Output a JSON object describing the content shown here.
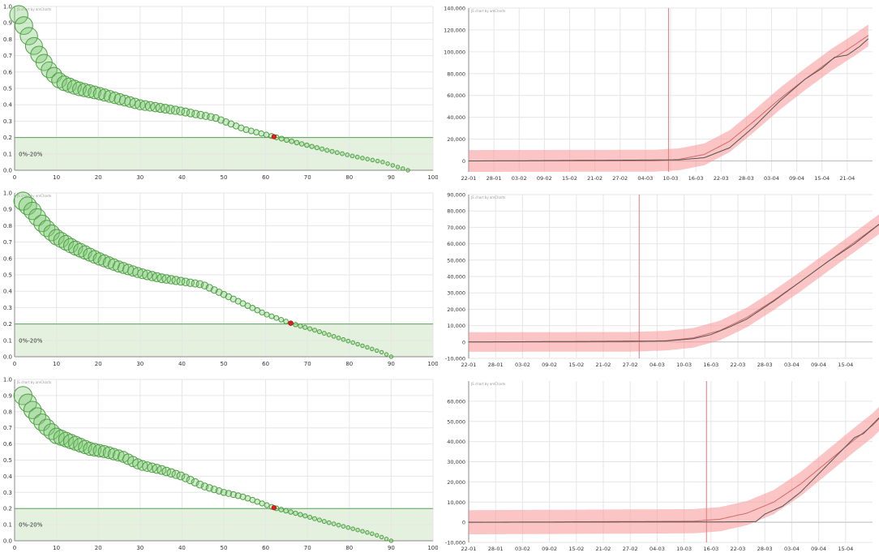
{
  "chart_data": [
    {
      "type": "scatter",
      "credit": "JS chart by amCharts",
      "band_label": "0%-20%",
      "xlim": [
        0,
        100
      ],
      "ylim": [
        0,
        1.0
      ],
      "xticks": [
        0,
        10,
        20,
        30,
        40,
        50,
        60,
        70,
        80,
        90,
        100
      ],
      "yticks": [
        0.0,
        0.1,
        0.2,
        0.3,
        0.4,
        0.5,
        0.6,
        0.7,
        0.8,
        0.9,
        1.0
      ],
      "band": [
        0,
        0.2
      ],
      "knots": [
        [
          1,
          0.95
        ],
        [
          3,
          0.84
        ],
        [
          5,
          0.74
        ],
        [
          8,
          0.62
        ],
        [
          11,
          0.54
        ],
        [
          15,
          0.5
        ],
        [
          20,
          0.47
        ],
        [
          30,
          0.4
        ],
        [
          40,
          0.36
        ],
        [
          48,
          0.32
        ],
        [
          55,
          0.25
        ],
        [
          62,
          0.205
        ],
        [
          68,
          0.165
        ],
        [
          75,
          0.12
        ],
        [
          82,
          0.08
        ],
        [
          88,
          0.05
        ],
        [
          91,
          0.025
        ],
        [
          94,
          0.0
        ]
      ],
      "highlight": [
        62,
        0.205
      ],
      "points_count": 78
    },
    {
      "type": "line",
      "credit": "JS chart by amCharts",
      "x_labels": [
        "22-01",
        "28-01",
        "03-02",
        "09-02",
        "15-02",
        "21-02",
        "27-02",
        "04-03",
        "10-03",
        "16-03",
        "22-03",
        "28-03",
        "03-04",
        "09-04",
        "15-04",
        "21-04"
      ],
      "ylim": [
        -10000,
        140000
      ],
      "yticks": [
        0,
        20000,
        40000,
        60000,
        80000,
        100000,
        120000,
        140000
      ],
      "ytick_labels": [
        "0",
        "20,000",
        "40,000",
        "60,000",
        "80,000",
        "100,000",
        "120,000",
        "140,000"
      ],
      "band_halfwidth": 10000,
      "vline_day": 47.5,
      "smooth_knots": [
        [
          0,
          0
        ],
        [
          44,
          200
        ],
        [
          50,
          1500
        ],
        [
          56,
          6000
        ],
        [
          62,
          18000
        ],
        [
          68,
          37000
        ],
        [
          74,
          57000
        ],
        [
          80,
          75000
        ],
        [
          86,
          92000
        ],
        [
          92,
          107000
        ],
        [
          95,
          115000
        ]
      ],
      "actual_knots": [
        [
          0,
          0
        ],
        [
          50,
          1000
        ],
        [
          56,
          3000
        ],
        [
          62,
          12000
        ],
        [
          68,
          32000
        ],
        [
          74,
          55000
        ],
        [
          80,
          75000
        ],
        [
          84,
          85000
        ],
        [
          87,
          95000
        ],
        [
          90,
          97000
        ],
        [
          93,
          105000
        ],
        [
          95,
          112000
        ]
      ]
    },
    {
      "type": "scatter",
      "credit": "JS chart by amCharts",
      "band_label": "0%-20%",
      "xlim": [
        0,
        100
      ],
      "ylim": [
        0,
        1.0
      ],
      "xticks": [
        0,
        10,
        20,
        30,
        40,
        50,
        60,
        70,
        80,
        90,
        100
      ],
      "yticks": [
        0.0,
        0.1,
        0.2,
        0.3,
        0.4,
        0.5,
        0.6,
        0.7,
        0.8,
        0.9,
        1.0
      ],
      "band": [
        0,
        0.2
      ],
      "knots": [
        [
          2,
          0.95
        ],
        [
          4,
          0.9
        ],
        [
          7,
          0.8
        ],
        [
          10,
          0.73
        ],
        [
          14,
          0.67
        ],
        [
          20,
          0.6
        ],
        [
          25,
          0.55
        ],
        [
          30,
          0.51
        ],
        [
          35,
          0.48
        ],
        [
          40,
          0.46
        ],
        [
          45,
          0.44
        ],
        [
          50,
          0.38
        ],
        [
          55,
          0.32
        ],
        [
          60,
          0.26
        ],
        [
          66,
          0.205
        ],
        [
          72,
          0.16
        ],
        [
          78,
          0.11
        ],
        [
          84,
          0.06
        ],
        [
          88,
          0.025
        ],
        [
          90,
          0.0
        ]
      ],
      "highlight": [
        66,
        0.205
      ],
      "points_count": 78
    },
    {
      "type": "line",
      "credit": "JS chart by amCharts",
      "x_labels": [
        "22-01",
        "28-01",
        "03-02",
        "09-02",
        "15-02",
        "21-02",
        "27-02",
        "04-03",
        "10-03",
        "16-03",
        "22-03",
        "28-03",
        "03-04",
        "09-04",
        "15-04"
      ],
      "ylim": [
        -10000,
        90000
      ],
      "yticks": [
        -10000,
        0,
        10000,
        20000,
        30000,
        40000,
        50000,
        60000,
        70000,
        80000,
        90000
      ],
      "ytick_labels": [
        "-10,000",
        "0",
        "10,000",
        "20,000",
        "30,000",
        "40,000",
        "50,000",
        "60,000",
        "70,000",
        "80,000",
        "90,000"
      ],
      "band_halfwidth": 6000,
      "vline_day": 38,
      "smooth_knots": [
        [
          0,
          0
        ],
        [
          36,
          100
        ],
        [
          44,
          800
        ],
        [
          50,
          2500
        ],
        [
          56,
          7000
        ],
        [
          62,
          15000
        ],
        [
          68,
          25500
        ],
        [
          74,
          37000
        ],
        [
          80,
          49000
        ],
        [
          86,
          61000
        ],
        [
          90,
          69000
        ],
        [
          92,
          73000
        ]
      ],
      "actual_knots": [
        [
          0,
          0
        ],
        [
          44,
          600
        ],
        [
          50,
          2000
        ],
        [
          54,
          4500
        ],
        [
          58,
          9000
        ],
        [
          62,
          14000
        ],
        [
          68,
          25000
        ],
        [
          74,
          37000
        ],
        [
          80,
          49000
        ],
        [
          86,
          60000
        ],
        [
          92,
          73000
        ]
      ]
    },
    {
      "type": "scatter",
      "credit": "JS chart by amCharts",
      "band_label": "0%-20%",
      "xlim": [
        0,
        100
      ],
      "ylim": [
        0,
        1.0
      ],
      "xticks": [
        0,
        10,
        20,
        30,
        40,
        50,
        60,
        70,
        80,
        90,
        100
      ],
      "yticks": [
        0.0,
        0.1,
        0.2,
        0.3,
        0.4,
        0.5,
        0.6,
        0.7,
        0.8,
        0.9,
        1.0
      ],
      "band": [
        0,
        0.2
      ],
      "knots": [
        [
          2,
          0.9
        ],
        [
          4,
          0.82
        ],
        [
          7,
          0.72
        ],
        [
          10,
          0.65
        ],
        [
          14,
          0.61
        ],
        [
          18,
          0.57
        ],
        [
          22,
          0.55
        ],
        [
          26,
          0.52
        ],
        [
          30,
          0.47
        ],
        [
          35,
          0.44
        ],
        [
          40,
          0.4
        ],
        [
          45,
          0.34
        ],
        [
          50,
          0.3
        ],
        [
          55,
          0.27
        ],
        [
          62,
          0.205
        ],
        [
          68,
          0.165
        ],
        [
          74,
          0.12
        ],
        [
          80,
          0.08
        ],
        [
          86,
          0.04
        ],
        [
          90,
          0.0
        ]
      ],
      "highlight": [
        62,
        0.205
      ],
      "points_count": 78
    },
    {
      "type": "line",
      "credit": "JS chart by amCharts",
      "x_labels": [
        "22-01",
        "28-01",
        "03-02",
        "09-02",
        "15-02",
        "21-02",
        "27-02",
        "04-03",
        "10-03",
        "16-03",
        "22-03",
        "28-03",
        "03-04",
        "09-04",
        "15-04"
      ],
      "ylim": [
        -10000,
        70000
      ],
      "yticks": [
        -10000,
        0,
        10000,
        20000,
        30000,
        40000,
        50000,
        60000
      ],
      "ytick_labels": [
        "-10,000",
        "0",
        "10,000",
        "20,000",
        "30,000",
        "40,000",
        "50,000",
        "60,000"
      ],
      "band_halfwidth": 6000,
      "vline_day": 53,
      "smooth_knots": [
        [
          0,
          0
        ],
        [
          50,
          500
        ],
        [
          56,
          1500
        ],
        [
          62,
          4500
        ],
        [
          68,
          10000
        ],
        [
          74,
          19000
        ],
        [
          80,
          30000
        ],
        [
          86,
          41000
        ],
        [
          90,
          48000
        ],
        [
          94,
          57000
        ],
        [
          97,
          62000
        ]
      ],
      "actual_knots": [
        [
          0,
          0
        ],
        [
          60,
          200
        ],
        [
          64,
          300
        ],
        [
          66,
          4000
        ],
        [
          70,
          8000
        ],
        [
          74,
          15000
        ],
        [
          78,
          24000
        ],
        [
          82,
          33000
        ],
        [
          86,
          42000
        ],
        [
          88,
          44000
        ],
        [
          92,
          53000
        ],
        [
          97,
          60000
        ]
      ]
    }
  ]
}
